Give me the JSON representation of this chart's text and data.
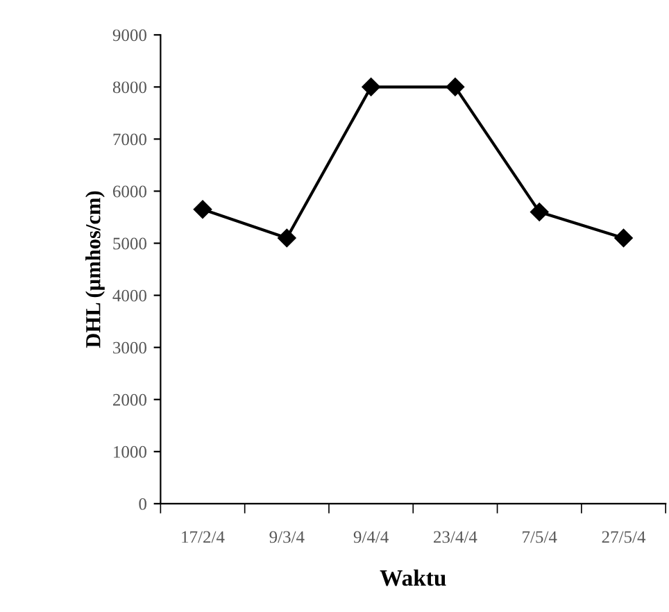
{
  "chart_data": {
    "type": "line",
    "xlabel": "Waktu",
    "ylabel": "DHL (µmhos/cm)",
    "categories": [
      "17/2/4",
      "9/3/4",
      "9/4/4",
      "23/4/4",
      "7/5/4",
      "27/5/4"
    ],
    "series": [
      {
        "color": "#000000",
        "values": [
          5650,
          5100,
          8000,
          8000,
          5600,
          5100
        ]
      }
    ],
    "ylim": [
      0,
      9000
    ],
    "yticks": [
      0,
      1000,
      2000,
      3000,
      4000,
      5000,
      6000,
      7000,
      8000,
      9000
    ],
    "grid": false,
    "marker": "diamond",
    "line_style": "solid"
  }
}
